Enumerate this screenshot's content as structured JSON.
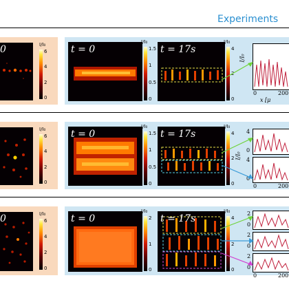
{
  "header": {
    "title": "Experiments"
  },
  "colorbar_unit": "I/I₀",
  "rows": [
    {
      "left_label": "0",
      "left_ticks": [
        "6",
        "4",
        "2",
        "0"
      ],
      "t0_label": "t = 0",
      "t0_ticks": [
        "1.5",
        "1",
        "0.5",
        "0"
      ],
      "t17_label": "t = 17s",
      "t17_ticks": [
        "4",
        "2",
        "0"
      ],
      "plot_ticks": [
        "0",
        "200"
      ],
      "plot_xlabel": "x [μ",
      "plot_ylabel": "I/I₀"
    },
    {
      "left_ticks": [
        "6",
        "4",
        "2",
        "0"
      ],
      "t0_label": "t = 0",
      "t0_ticks": [
        "1.5",
        "1",
        "0.5",
        "0"
      ],
      "t17_label": "t = 17s",
      "t17_ticks": [
        "4",
        "2",
        "0"
      ],
      "plot_ticks_top": [
        "4",
        "2",
        "0"
      ],
      "plot_ticks_bottom": [
        "4",
        "2",
        "0"
      ],
      "plot_xticks": [
        "0",
        "200"
      ],
      "plot_ylabel": "I/I₀"
    },
    {
      "left_label": "0",
      "left_ticks": [
        "6",
        "4",
        "2",
        "0"
      ],
      "t0_label": "t = 0",
      "t0_ticks": [
        "2",
        "1",
        "0"
      ],
      "t17_label": "t = 17s",
      "t17_ticks": [
        "4",
        "2",
        "0"
      ],
      "plot_ticks": [
        "2",
        "0",
        "2",
        "0",
        "2",
        "0"
      ],
      "plot_xticks": [
        "0",
        "200"
      ],
      "plot_ylabel": "I/I₀"
    }
  ],
  "colors": {
    "title": "#2a8fd0",
    "left_panel": "#f9d9bd",
    "right_panel": "#cfe6f3",
    "trace": "#c0203c",
    "box_yellow": "#e9e24a",
    "box_cyan": "#58d2e6",
    "box_magenta": "#d04ad0",
    "arrow_green": "#6fd23a",
    "arrow_blue": "#3a9bd8",
    "arrow_magenta": "#d040d0"
  }
}
